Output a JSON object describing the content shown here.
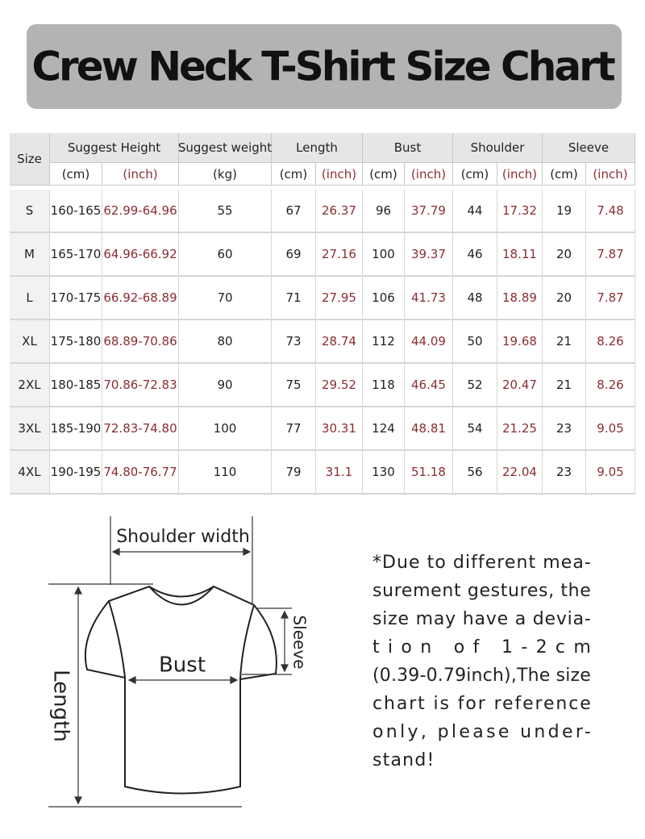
{
  "header": {
    "title": "Crew Neck T-Shirt Size Chart"
  },
  "table": {
    "columns": [
      {
        "label": "Size"
      },
      {
        "label": "Suggest Height",
        "units": [
          "(cm)",
          "(inch)"
        ]
      },
      {
        "label": "Suggest weight",
        "units": [
          "(kg)"
        ]
      },
      {
        "label": "Length",
        "units": [
          "(cm)",
          "(inch)"
        ]
      },
      {
        "label": "Bust",
        "units": [
          "(cm)",
          "(inch)"
        ]
      },
      {
        "label": "Shoulder",
        "units": [
          "(cm)",
          "(inch)"
        ]
      },
      {
        "label": "Sleeve",
        "units": [
          "(cm)",
          "(inch)"
        ]
      }
    ],
    "rows": [
      [
        "S",
        "160-165",
        "62.99-64.96",
        "55",
        "67",
        "26.37",
        "96",
        "37.79",
        "44",
        "17.32",
        "19",
        "7.48"
      ],
      [
        "M",
        "165-170",
        "64.96-66.92",
        "60",
        "69",
        "27.16",
        "100",
        "39.37",
        "46",
        "18.11",
        "20",
        "7.87"
      ],
      [
        "L",
        "170-175",
        "66.92-68.89",
        "70",
        "71",
        "27.95",
        "106",
        "41.73",
        "48",
        "18.89",
        "20",
        "7.87"
      ],
      [
        "XL",
        "175-180",
        "68.89-70.86",
        "80",
        "73",
        "28.74",
        "112",
        "44.09",
        "50",
        "19.68",
        "21",
        "8.26"
      ],
      [
        "2XL",
        "180-185",
        "70.86-72.83",
        "90",
        "75",
        "29.52",
        "118",
        "46.45",
        "52",
        "20.47",
        "21",
        "8.26"
      ],
      [
        "3XL",
        "185-190",
        "72.83-74.80",
        "100",
        "77",
        "30.31",
        "124",
        "48.81",
        "54",
        "21.25",
        "23",
        "9.05"
      ],
      [
        "4XL",
        "190-195",
        "74.80-76.77",
        "110",
        "79",
        "31.1",
        "130",
        "51.18",
        "56",
        "22.04",
        "23",
        "9.05"
      ]
    ]
  },
  "diagram": {
    "shoulder": "Shoulder width",
    "bust": "Bust",
    "length": "Length",
    "sleeve": "Sleeve"
  },
  "note": {
    "lines": [
      "*Due to different mea-",
      "surement gestures, the",
      "size may have a devia-",
      "tion of 1-2cm",
      "(0.39-0.79inch),The size",
      "chart is for reference",
      "only, please under-",
      "stand!"
    ]
  }
}
